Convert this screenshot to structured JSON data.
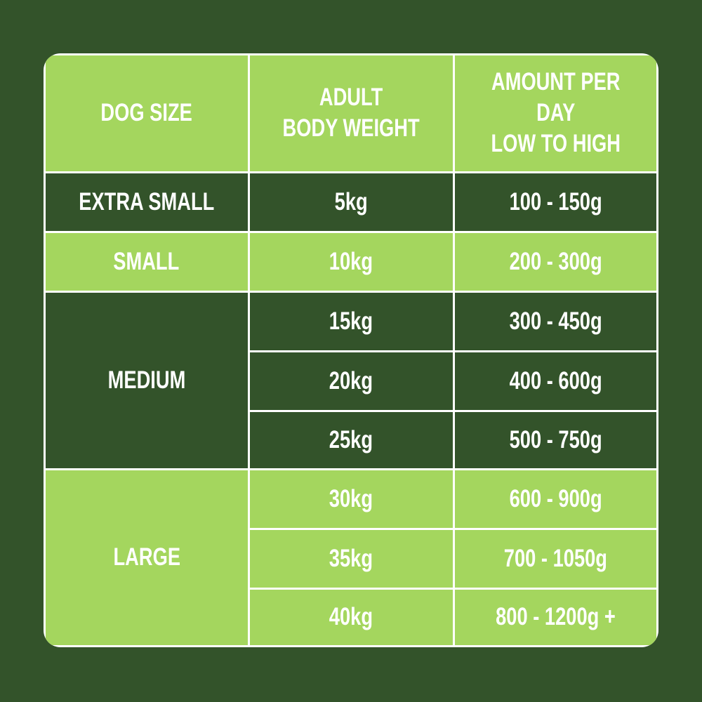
{
  "colors": {
    "background": "#33532a",
    "light": "#a4d65e",
    "dark": "#33532a",
    "border": "#ffffff"
  },
  "headers": [
    "DOG SIZE",
    "ADULT\nBODY WEIGHT",
    "AMOUNT PER DAY\nLOW TO HIGH"
  ],
  "groups": [
    {
      "size": "EXTRA SMALL",
      "shade": "dark",
      "rows": [
        {
          "weight": "5kg",
          "amount": "100 - 150g"
        }
      ]
    },
    {
      "size": "SMALL",
      "shade": "light",
      "rows": [
        {
          "weight": "10kg",
          "amount": "200 - 300g"
        }
      ]
    },
    {
      "size": "MEDIUM",
      "shade": "dark",
      "rows": [
        {
          "weight": "15kg",
          "amount": "300 - 450g"
        },
        {
          "weight": "20kg",
          "amount": "400 - 600g"
        },
        {
          "weight": "25kg",
          "amount": "500 - 750g"
        }
      ]
    },
    {
      "size": "LARGE",
      "shade": "light",
      "rows": [
        {
          "weight": "30kg",
          "amount": "600 - 900g"
        },
        {
          "weight": "35kg",
          "amount": "700 - 1050g"
        },
        {
          "weight": "40kg",
          "amount": "800 - 1200g +"
        }
      ]
    }
  ]
}
